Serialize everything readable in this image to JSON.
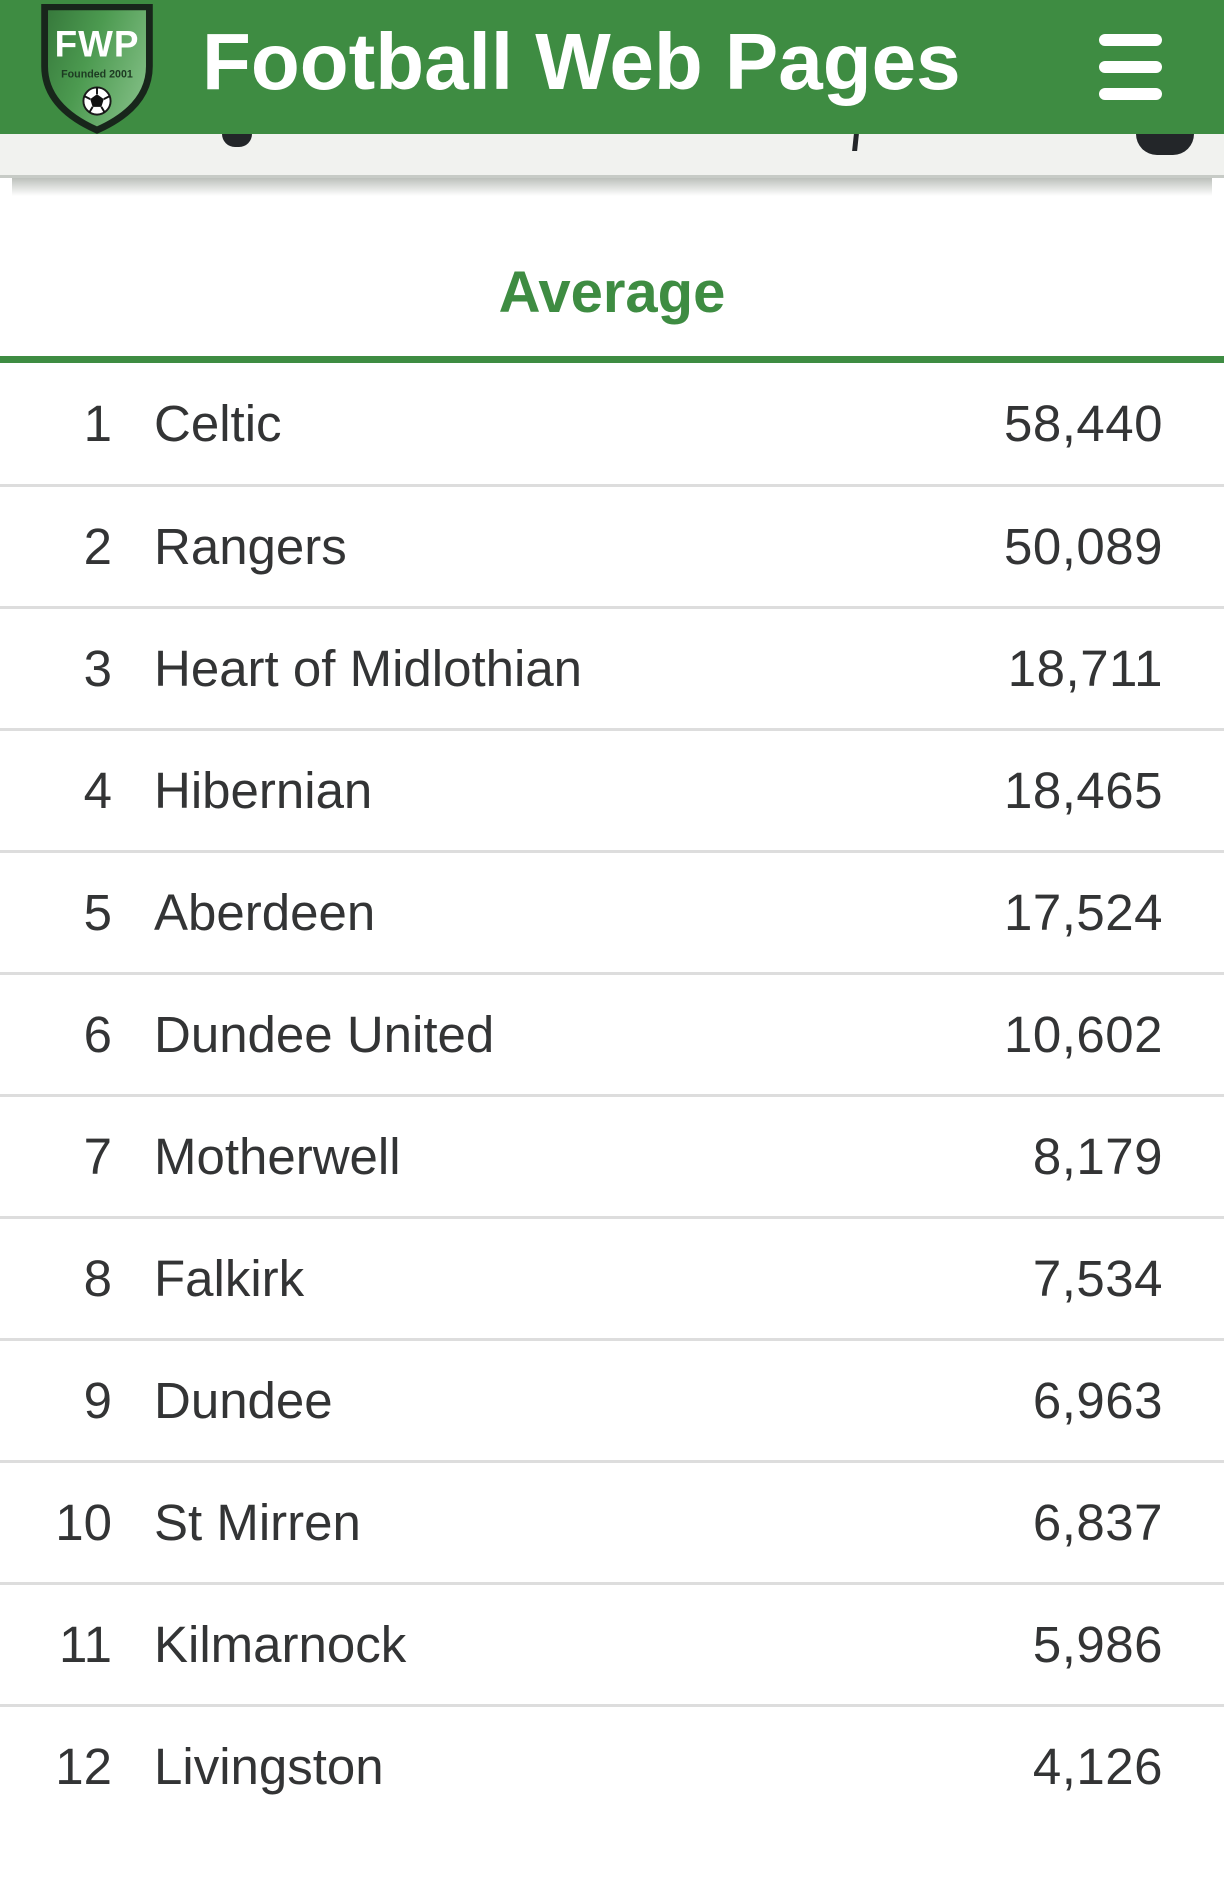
{
  "header": {
    "title": "Football Web Pages",
    "logo": {
      "abbr": "FWP",
      "founded": "Founded 2001",
      "icons": [
        "shield-icon",
        "football-icon"
      ]
    },
    "menu_icon": "hamburger-icon"
  },
  "table": {
    "column_header": "Average",
    "rows": [
      {
        "rank": "1",
        "team": "Celtic",
        "value": "58,440"
      },
      {
        "rank": "2",
        "team": "Rangers",
        "value": "50,089"
      },
      {
        "rank": "3",
        "team": "Heart of Midlothian",
        "value": "18,711"
      },
      {
        "rank": "4",
        "team": "Hibernian",
        "value": "18,465"
      },
      {
        "rank": "5",
        "team": "Aberdeen",
        "value": "17,524"
      },
      {
        "rank": "6",
        "team": "Dundee United",
        "value": "10,602"
      },
      {
        "rank": "7",
        "team": "Motherwell",
        "value": "8,179"
      },
      {
        "rank": "8",
        "team": "Falkirk",
        "value": "7,534"
      },
      {
        "rank": "9",
        "team": "Dundee",
        "value": "6,963"
      },
      {
        "rank": "10",
        "team": "St Mirren",
        "value": "6,837"
      },
      {
        "rank": "11",
        "team": "Kilmarnock",
        "value": "5,986"
      },
      {
        "rank": "12",
        "team": "Livingston",
        "value": "4,126"
      }
    ]
  },
  "colors": {
    "brand_green": "#3e8c42",
    "header_text": "#ffffff",
    "row_text": "#333435",
    "row_divider": "#dddddd",
    "subheader_bg": "#f1f2ef"
  }
}
